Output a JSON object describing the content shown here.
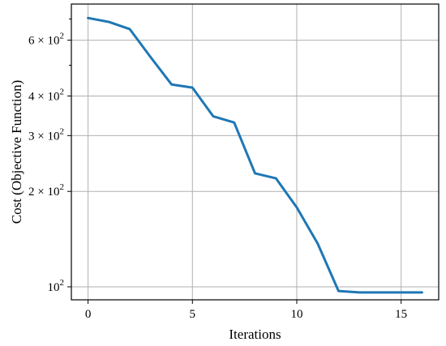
{
  "chart_data": {
    "type": "line",
    "xlabel": "Iterations",
    "ylabel": "Cost (Objective Function)",
    "yscale": "log",
    "xlim": [
      -0.8,
      16.8
    ],
    "ylim": [
      91,
      780
    ],
    "grid": true,
    "x": [
      0,
      1,
      2,
      3,
      4,
      5,
      6,
      7,
      8,
      9,
      10,
      11,
      12,
      13,
      14,
      15,
      16
    ],
    "series": [
      {
        "color": "#1f77b4",
        "values": [
          705,
          685,
          650,
          530,
          435,
          425,
          345,
          330,
          228,
          220,
          178,
          137,
          97,
          96,
          96,
          96,
          96
        ]
      }
    ],
    "x_ticks": [
      {
        "value": 0,
        "label": "0"
      },
      {
        "value": 5,
        "label": "5"
      },
      {
        "value": 10,
        "label": "10"
      },
      {
        "value": 15,
        "label": "15"
      }
    ],
    "y_major_ticks": [
      {
        "value": 100,
        "mantissa": "",
        "exponent": "2"
      },
      {
        "value": 200,
        "mantissa": "2",
        "exponent": "2"
      },
      {
        "value": 300,
        "mantissa": "3",
        "exponent": "2"
      },
      {
        "value": 400,
        "mantissa": "4",
        "exponent": "2"
      },
      {
        "value": 600,
        "mantissa": "6",
        "exponent": "2"
      }
    ],
    "y_minor_ticks": [
      500,
      700
    ]
  }
}
